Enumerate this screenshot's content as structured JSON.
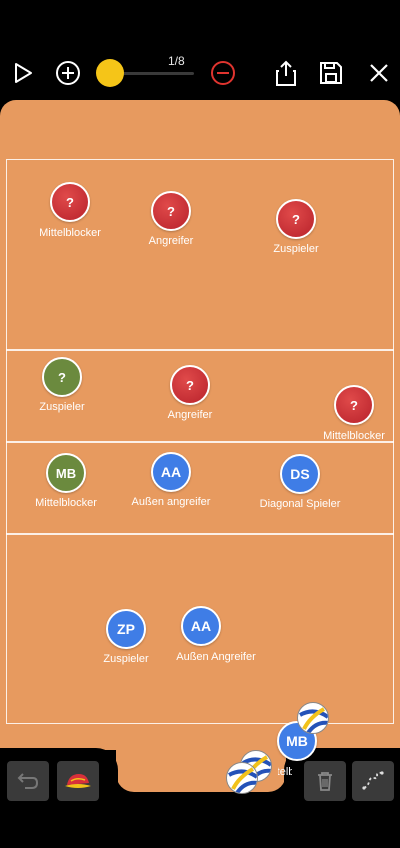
{
  "toolbar": {
    "page_counter": "1/8",
    "icons": [
      "play-icon",
      "plus-icon",
      "minus-icon",
      "share-icon",
      "save-icon",
      "close-icon"
    ],
    "accent": "#f5c518",
    "minus_color": "#e0342f"
  },
  "players": {
    "opponent": [
      {
        "mark": "?",
        "label": "Mittelblocker"
      },
      {
        "mark": "?",
        "label": "Angreifer"
      },
      {
        "mark": "?",
        "label": "Zuspieler"
      },
      {
        "mark": "?",
        "label": "Zuspieler"
      },
      {
        "mark": "?",
        "label": "Angreifer"
      },
      {
        "mark": "?",
        "label": "Mittelblocker"
      }
    ],
    "team": [
      {
        "mark": "MB",
        "label": "Mittelblocker"
      },
      {
        "mark": "AA",
        "label": "Außen angreifer"
      },
      {
        "mark": "DS",
        "label": "Diagonal Spieler"
      },
      {
        "mark": "ZP",
        "label": "Zuspieler"
      },
      {
        "mark": "AA",
        "label": "Außen Angreifer"
      }
    ],
    "bench": {
      "mark": "MB",
      "label": "Mittelblocker"
    }
  },
  "colors": {
    "court": "#e79a5f",
    "opponent": "#c8282f",
    "team": "#3f7de6",
    "setter_opponent": "#6b8a3e",
    "libero": "#6b8a3e"
  },
  "bottom": {
    "icons": [
      "undo-icon",
      "cap-icon",
      "trash-icon",
      "path-icon"
    ]
  }
}
